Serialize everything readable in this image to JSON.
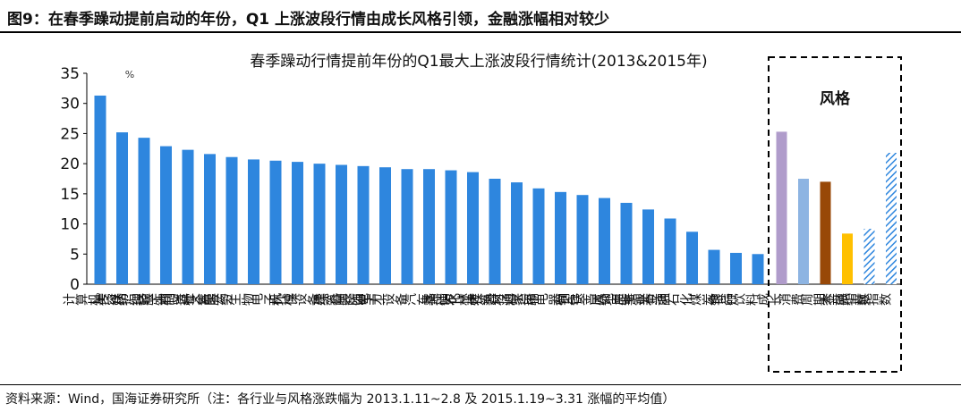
{
  "figure": {
    "heading": "图9：在春季躁动提前启动的年份，Q1 上涨波段行情由成长风格引领，金融涨幅相对较少",
    "source": "资料来源：Wind，国海证券研究所（注：各行业与风格涨跌幅为 2013.1.11~2.8 及 2015.1.19~3.31 涨幅的平均值）"
  },
  "chart_data": {
    "type": "bar",
    "title": "春季躁动行情提前年份的Q1最大上涨波段行情统计(2013&2015年)",
    "unit": "%",
    "ylim": [
      0,
      35
    ],
    "yticks": [
      0,
      5,
      10,
      15,
      20,
      25,
      30,
      35
    ],
    "grid": false,
    "categories": [
      "计算机",
      "传媒",
      "美容护理",
      "纺织服饰",
      "轻工制造",
      "商贸零售",
      "社会服务",
      "医药生物",
      "电子",
      "环保",
      "机械设备",
      "综合",
      "建筑装饰",
      "国防军工",
      "电力设备",
      "汽车",
      "通信",
      "基础化工",
      "农林牧渔",
      "建筑材料",
      "交通运输",
      "家用电器",
      "钢铁",
      "有色金属",
      "房地产",
      "公用事业",
      "非银金融",
      "石油石化",
      "煤炭",
      "银行",
      "食品饮料"
    ],
    "values": [
      31.3,
      25.2,
      24.3,
      22.9,
      22.3,
      21.6,
      21.1,
      20.7,
      20.5,
      20.3,
      20.0,
      19.8,
      19.6,
      19.4,
      19.1,
      19.1,
      18.9,
      18.6,
      17.5,
      16.9,
      15.9,
      15.3,
      14.8,
      14.3,
      13.5,
      12.4,
      10.9,
      8.7,
      5.7,
      5.2,
      5.0
    ],
    "bar_color": "#2E86DE",
    "style_group": {
      "label": "风格",
      "categories": [
        "成长",
        "消费",
        "周期",
        "金融",
        "大盘指数",
        "小盘指数"
      ],
      "values": [
        25.3,
        17.5,
        17.0,
        8.4,
        9.2,
        21.8
      ],
      "colors": [
        "#B09CCB",
        "#8DB4E2",
        "#984807",
        "#FFC000",
        "#2E86DE",
        "#2E86DE"
      ],
      "hatched": [
        false,
        false,
        false,
        false,
        true,
        true
      ]
    }
  }
}
